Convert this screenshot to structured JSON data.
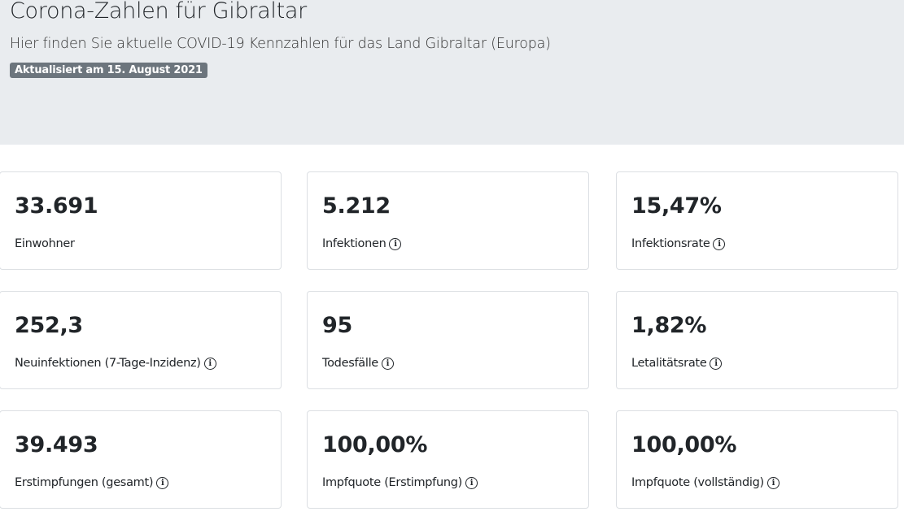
{
  "header": {
    "title": "Corona-Zahlen für Gibraltar",
    "subtitle": "Hier finden Sie aktuelle COVID-19 Kennzahlen für das Land Gibraltar (Europa)",
    "badge": "Aktualisiert am 15. August 2021"
  },
  "cards": [
    {
      "value": "33.691",
      "label": "Einwohner",
      "info": false
    },
    {
      "value": "5.212",
      "label": "Infektionen",
      "info": true
    },
    {
      "value": "15,47%",
      "label": "Infektionsrate",
      "info": true
    },
    {
      "value": "252,3",
      "label": "Neuinfektionen (7-Tage-Inzidenz)",
      "info": true
    },
    {
      "value": "95",
      "label": "Todesfälle",
      "info": true
    },
    {
      "value": "1,82%",
      "label": "Letalitätsrate",
      "info": true
    },
    {
      "value": "39.493",
      "label": "Erstimpfungen (gesamt)",
      "info": true
    },
    {
      "value": "100,00%",
      "label": "Impfquote (Erstimpfung)",
      "info": true
    },
    {
      "value": "100,00%",
      "label": "Impfquote (vollständig)",
      "info": true
    }
  ],
  "icons": {
    "info": "info-circle-icon",
    "info_glyph": "i"
  },
  "colors": {
    "hero_bg": "#e9ecef",
    "badge_bg": "#6c757d"
  }
}
